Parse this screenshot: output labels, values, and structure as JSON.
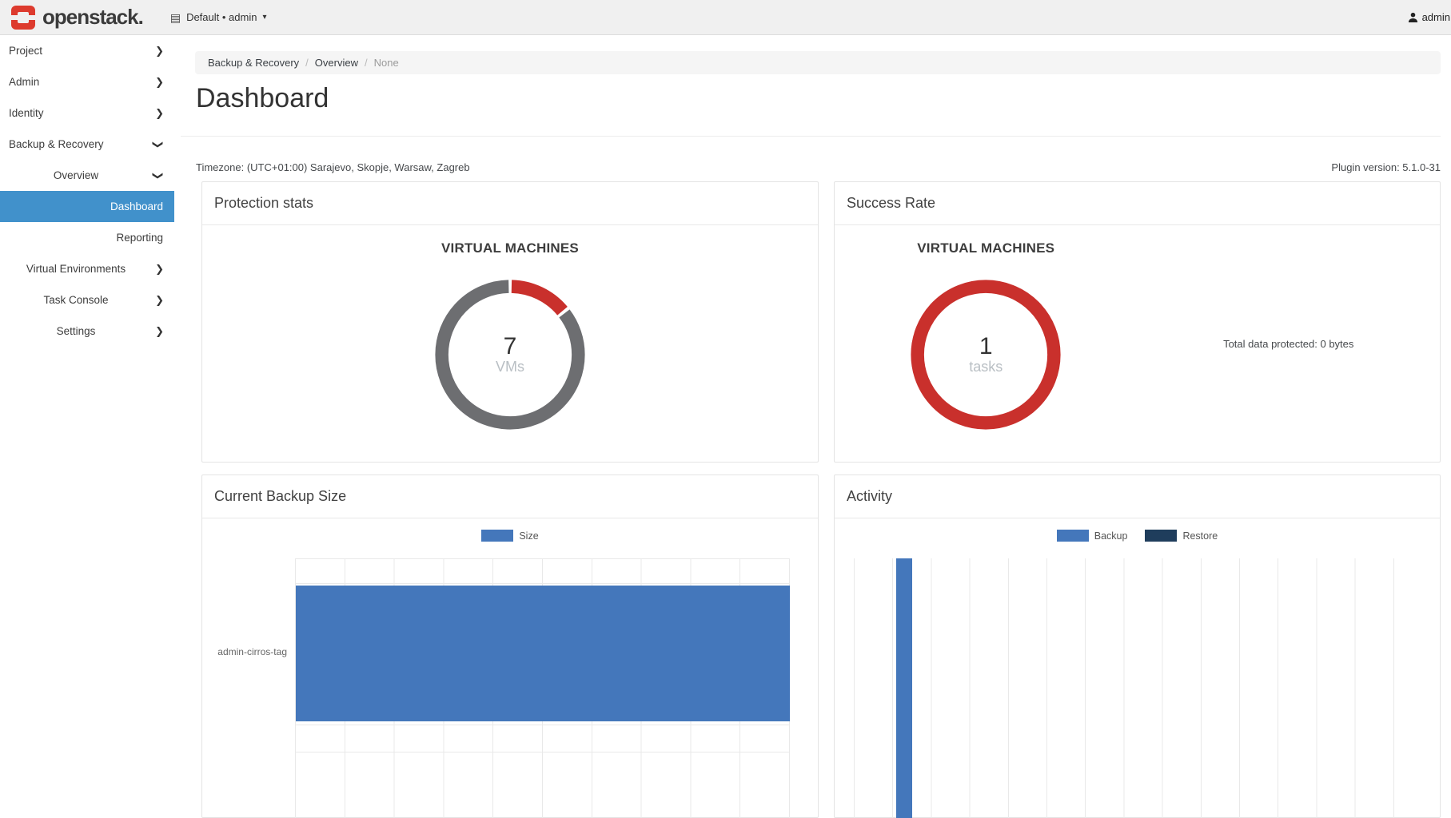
{
  "topbar": {
    "brand": "openstack.",
    "context_switcher": "Default • admin",
    "user": "admin"
  },
  "sidebar": {
    "items": [
      {
        "label": "Project",
        "level": 1,
        "chevron": "right"
      },
      {
        "label": "Admin",
        "level": 1,
        "chevron": "right"
      },
      {
        "label": "Identity",
        "level": 1,
        "chevron": "right"
      },
      {
        "label": "Backup & Recovery",
        "level": 1,
        "chevron": "down"
      },
      {
        "label": "Overview",
        "level": 2,
        "chevron": "down"
      },
      {
        "label": "Dashboard",
        "level": 3,
        "chevron": "none",
        "active": true
      },
      {
        "label": "Reporting",
        "level": 3,
        "chevron": "none"
      },
      {
        "label": "Virtual Environments",
        "level": 2,
        "chevron": "right"
      },
      {
        "label": "Task Console",
        "level": 2,
        "chevron": "right"
      },
      {
        "label": "Settings",
        "level": 2,
        "chevron": "right"
      }
    ]
  },
  "breadcrumb": {
    "items": [
      "Backup & Recovery",
      "Overview",
      "None"
    ]
  },
  "page": {
    "title": "Dashboard",
    "timezone": "Timezone: (UTC+01:00) Sarajevo, Skopje, Warsaw, Zagreb",
    "plugin_version": "Plugin version: 5.1.0-31"
  },
  "panels": {
    "protection_stats": {
      "title": "Protection stats",
      "subtitle": "VIRTUAL MACHINES",
      "donut": {
        "value": "7",
        "unit": "VMs",
        "segments": [
          {
            "name": "protected",
            "value": 1,
            "color": "#c9302c"
          },
          {
            "name": "unprotected",
            "value": 6,
            "color": "#6d6e71"
          }
        ]
      }
    },
    "success_rate": {
      "title": "Success Rate",
      "subtitle": "VIRTUAL MACHINES",
      "donut": {
        "value": "1",
        "unit": "tasks",
        "segments": [
          {
            "name": "success",
            "value": 1,
            "color": "#c9302c"
          }
        ]
      },
      "total_protected": "Total data protected: 0 bytes"
    },
    "current_backup_size": {
      "title": "Current Backup Size",
      "legend": [
        {
          "label": "Size",
          "color": "#4477bb"
        }
      ],
      "chart_data": {
        "type": "bar",
        "orientation": "horizontal",
        "categories": [
          "admin-cirros-tag"
        ],
        "series": [
          {
            "name": "Size",
            "color": "#4477bb",
            "values": [
              1
            ]
          }
        ],
        "grid": "vertical",
        "legend_position": "top",
        "note": "single bar spans full plot width; axis value labels cut off below viewport"
      }
    },
    "activity": {
      "title": "Activity",
      "legend": [
        {
          "label": "Backup",
          "color": "#4477bb"
        },
        {
          "label": "Restore",
          "color": "#1f3d5c"
        }
      ],
      "chart_data": {
        "type": "bar",
        "orientation": "vertical",
        "series": [
          {
            "name": "Backup",
            "color": "#4477bb"
          },
          {
            "name": "Restore",
            "color": "#1f3d5c"
          }
        ],
        "bars": [
          {
            "series": "Backup",
            "slot": 1,
            "relative_height": 1
          }
        ],
        "grid": "vertical",
        "legend_position": "top",
        "note": "one full-height Backup bar near left; axis labels cut off below viewport"
      }
    }
  }
}
